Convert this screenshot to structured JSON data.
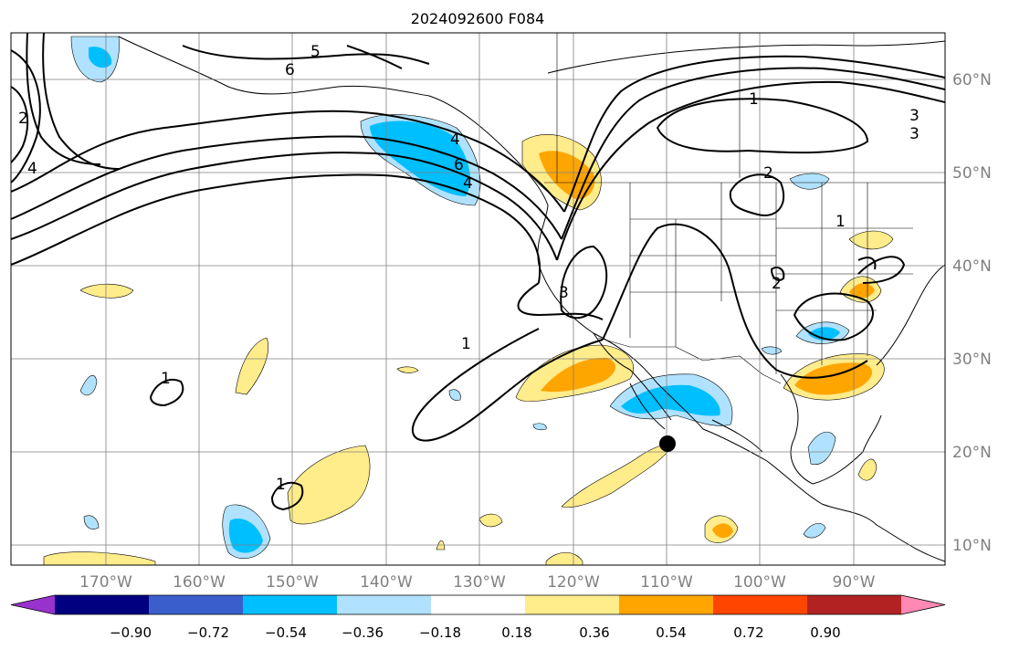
{
  "title": "2024092600 F084",
  "lon_labels": [
    "170°W",
    "160°W",
    "150°W",
    "140°W",
    "130°W",
    "120°W",
    "110°W",
    "100°W",
    "90°W"
  ],
  "lat_labels": [
    "60°N",
    "50°N",
    "40°N",
    "30°N",
    "20°N",
    "10°N"
  ],
  "contour_labels": [
    "5",
    "6",
    "2",
    "4",
    "4",
    "6",
    "4",
    "1",
    "2",
    "3",
    "3",
    "3",
    "1",
    "2",
    "1",
    "1",
    "1"
  ],
  "colorbar": {
    "colors": [
      "#9932cc",
      "#000080",
      "#3a5fcd",
      "#00bfff",
      "#b0e2ff",
      "#ffffff",
      "#ffec8b",
      "#ffa500",
      "#ff4500",
      "#b22222",
      "#ff89b4"
    ],
    "tick_labels": [
      "−0.90",
      "−0.72",
      "−0.54",
      "−0.36",
      "−0.18",
      "0.18",
      "0.36",
      "0.54",
      "0.72",
      "0.90"
    ]
  },
  "colors": {
    "frame": "#000000",
    "grid": "#808080",
    "axis_text": "#808080",
    "land_line": "#000000"
  }
}
